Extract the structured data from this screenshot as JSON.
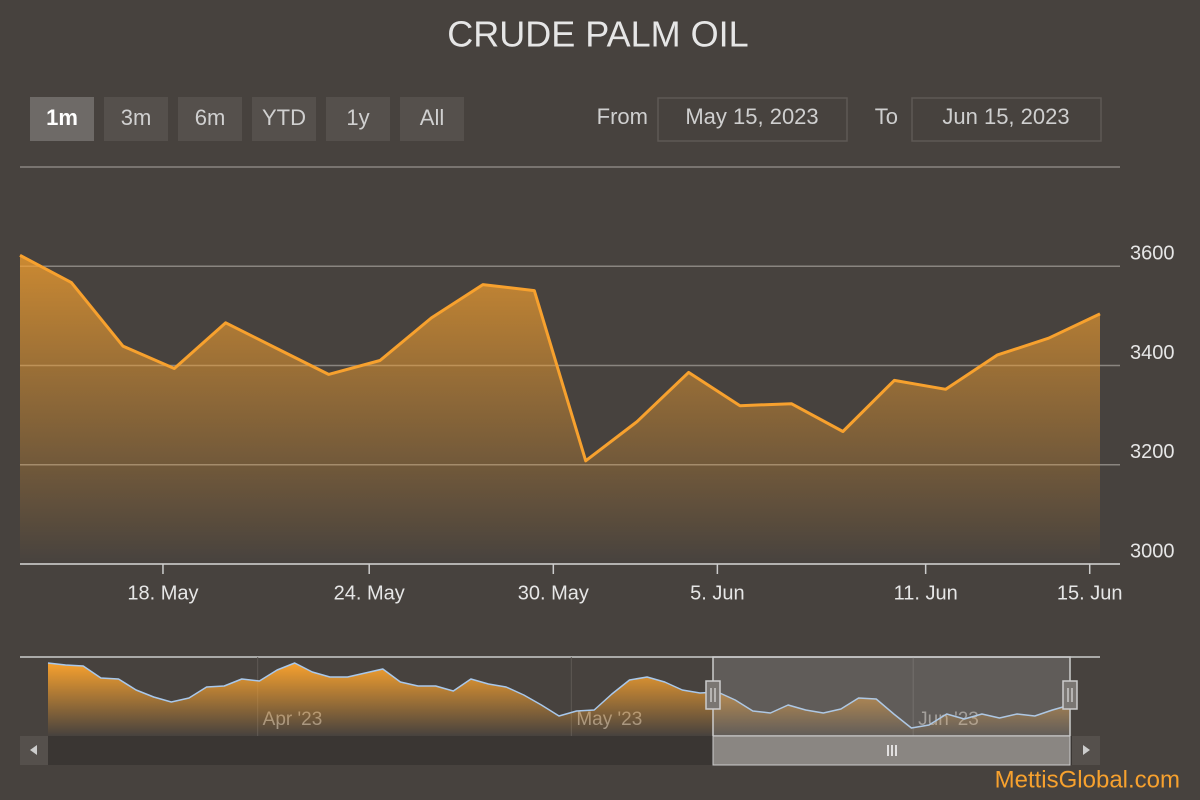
{
  "chart_data": {
    "type": "area",
    "title": "CRUDE PALM OIL",
    "values": [
      3622,
      3567,
      3439,
      3394,
      3486,
      3434,
      3382,
      3410,
      3496,
      3563,
      3551,
      3208,
      3287,
      3386,
      3319,
      3323,
      3267,
      3370,
      3352,
      3421,
      3455,
      3504
    ],
    "color": "#f7a12e",
    "xlim": [
      0,
      21
    ],
    "xticks": [
      {
        "value": 2.78,
        "label": "18. May"
      },
      {
        "value": 6.79,
        "label": "24. May"
      },
      {
        "value": 10.37,
        "label": "30. May"
      },
      {
        "value": 13.56,
        "label": "5. Jun"
      },
      {
        "value": 17.61,
        "label": "11. Jun"
      },
      {
        "value": 20.8,
        "label": "15. Jun"
      }
    ],
    "ylim": [
      3000,
      3800
    ],
    "yticks": [
      3000,
      3200,
      3400,
      3600
    ],
    "grid": true,
    "range_selector": {
      "buttons": [
        "1m",
        "3m",
        "6m",
        "YTD",
        "1y",
        "All"
      ],
      "selected": 0,
      "from_label": "From",
      "from": "May 15, 2023",
      "to_label": "To",
      "to": "Jun 15, 2023"
    },
    "navigator": {
      "values": [
        3964,
        3941,
        3929,
        3787,
        3775,
        3645,
        3562,
        3503,
        3550,
        3680,
        3692,
        3775,
        3751,
        3881,
        3964,
        3858,
        3799,
        3799,
        3846,
        3893,
        3739,
        3692,
        3692,
        3633,
        3775,
        3716,
        3680,
        3585,
        3467,
        3337,
        3396,
        3408,
        3597,
        3763,
        3799,
        3739,
        3645,
        3609,
        3621,
        3526,
        3396,
        3372,
        3467,
        3408,
        3372,
        3420,
        3550,
        3538,
        3360,
        3195,
        3230,
        3360,
        3301,
        3360,
        3313,
        3360,
        3337,
        3408,
        3467
      ],
      "color": "#a8c8ec",
      "area_color": "#f7a12e",
      "xlim": [
        0,
        58
      ],
      "ylim": [
        3100,
        4000
      ],
      "xticks": [
        {
          "value": 11.9,
          "label": "Apr '23"
        },
        {
          "value": 29.7,
          "label": "May '23"
        },
        {
          "value": 49.1,
          "label": "Jun '23"
        }
      ]
    }
  },
  "watermark": "MettisGlobal.com"
}
